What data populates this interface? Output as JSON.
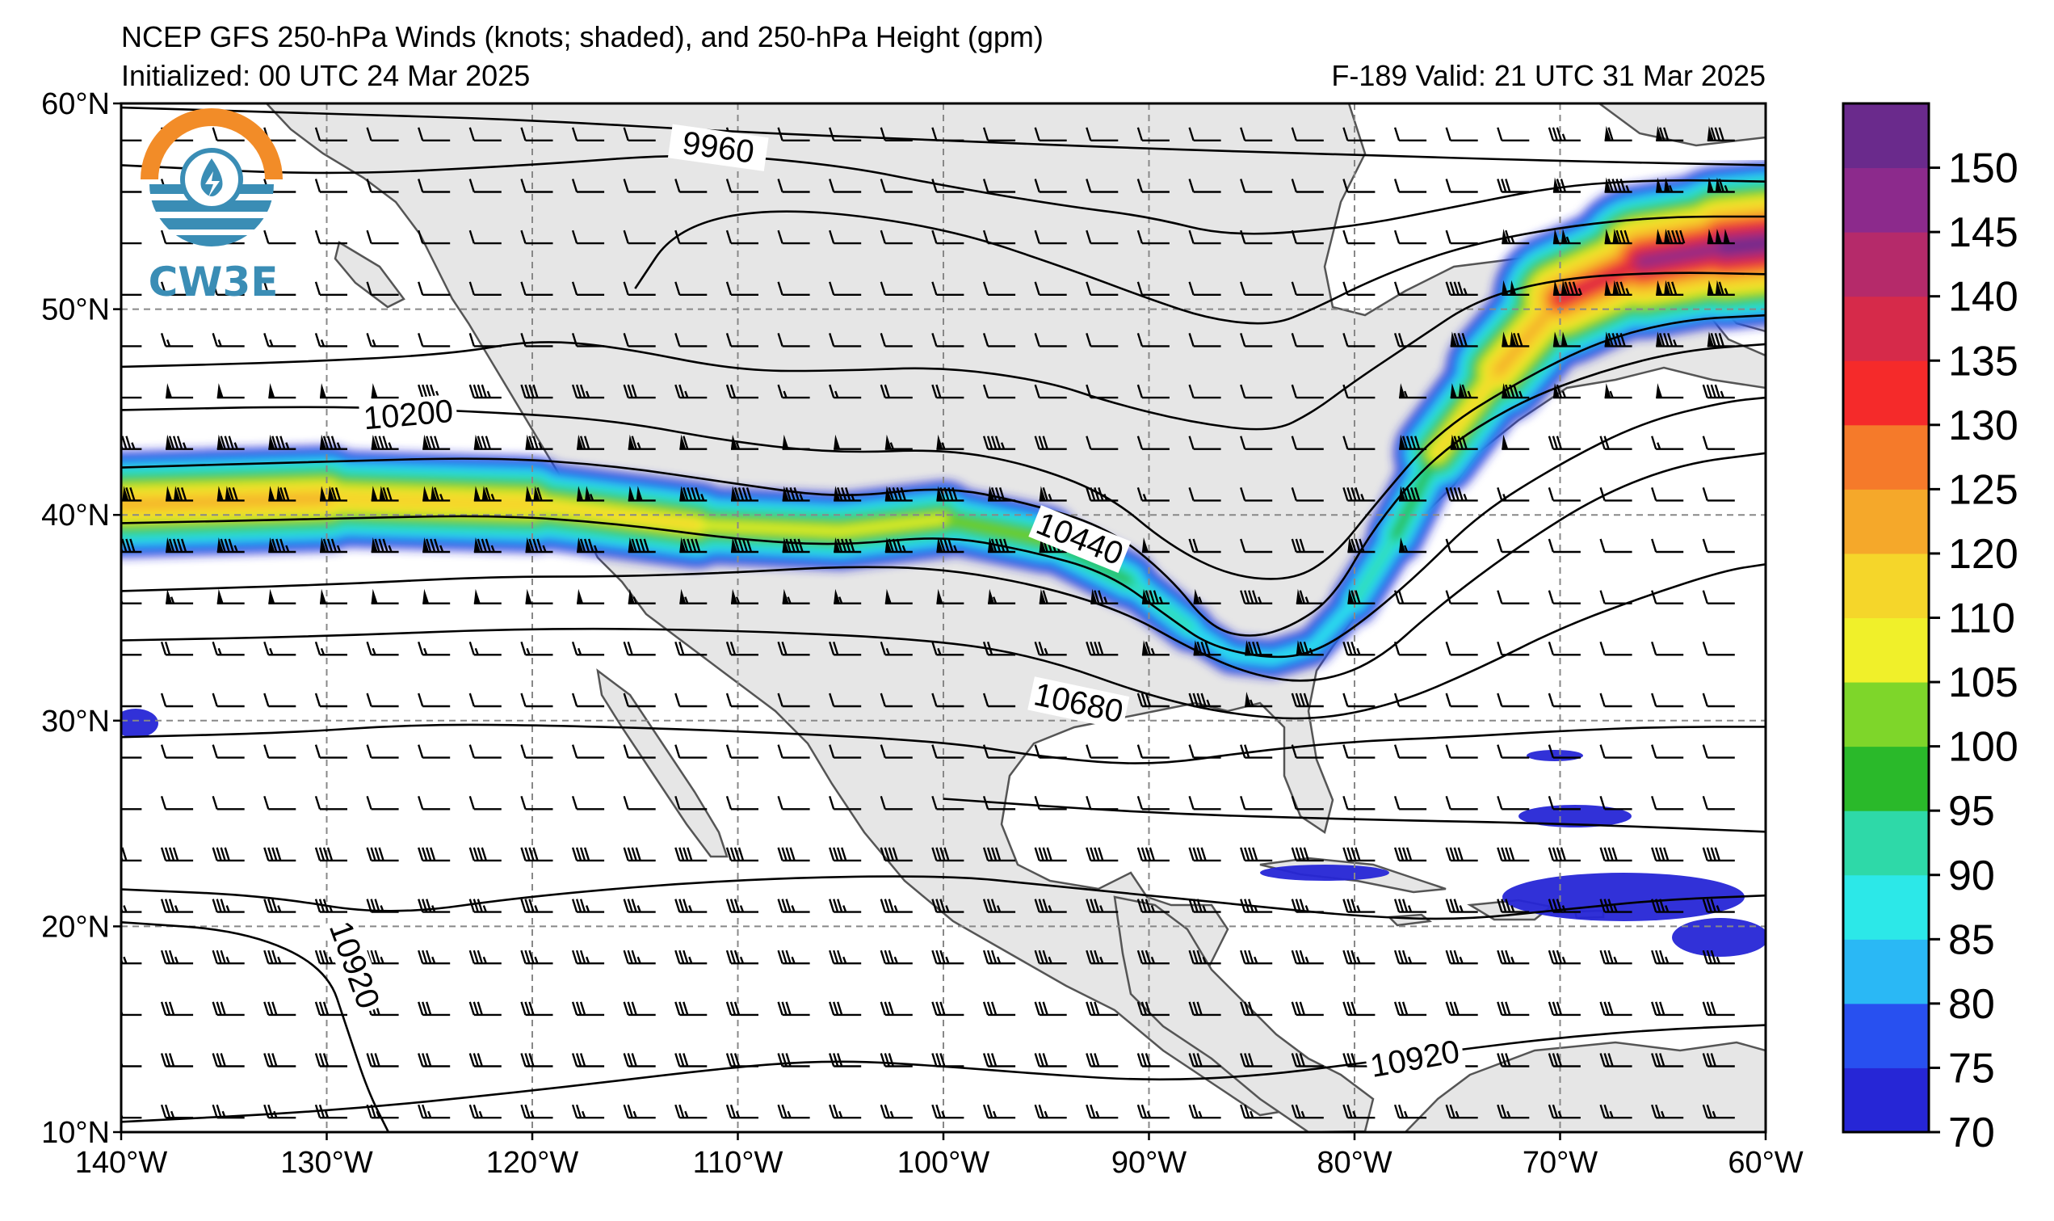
{
  "title": {
    "line1": "NCEP GFS 250-hPa Winds (knots; shaded), and 250-hPa Height (gpm)",
    "line2_left": "Initialized: 00 UTC 24 Mar 2025",
    "line2_right": "F-189  Valid: 21 UTC 31 Mar 2025"
  },
  "logo": {
    "text": "CW3E",
    "icon": "cw3e-logo-icon"
  },
  "map": {
    "lon_range": [
      -140,
      -60
    ],
    "lat_range": [
      10,
      60
    ],
    "grid": true,
    "lon_ticks": [
      "140°W",
      "130°W",
      "120°W",
      "110°W",
      "100°W",
      "90°W",
      "80°W",
      "70°W",
      "60°W"
    ],
    "lat_ticks": [
      "60°N",
      "50°N",
      "40°N",
      "30°N",
      "20°N",
      "10°N"
    ]
  },
  "contours": {
    "units": "gpm",
    "labels": [
      {
        "text": "9960",
        "lon": -111,
        "lat": 57.5,
        "rot": 8
      },
      {
        "text": "10200",
        "lon": -126,
        "lat": 44.5,
        "rot": -5
      },
      {
        "text": "10440",
        "lon": -93.5,
        "lat": 38.5,
        "rot": 22
      },
      {
        "text": "10680",
        "lon": -93.5,
        "lat": 30.5,
        "rot": 12
      },
      {
        "text": "10920",
        "lon": -129,
        "lat": 18,
        "rot": 70
      },
      {
        "text": "10920",
        "lon": -77,
        "lat": 13.2,
        "rot": -10
      }
    ],
    "lines": [
      {
        "lon": [
          -140,
          -130,
          -120,
          -110,
          -100,
          -90,
          -80,
          -70,
          -60
        ],
        "lat": [
          59.8,
          59.5,
          59.2,
          58.6,
          58.2,
          57.8,
          57.5,
          57.2,
          57.0
        ]
      },
      {
        "lon": [
          -140,
          -130,
          -120,
          -112,
          -105,
          -100,
          -94,
          -90,
          -86,
          -80,
          -75,
          -70,
          -65,
          -60
        ],
        "lat": [
          57.0,
          56.5,
          57.0,
          57.6,
          57.0,
          56.0,
          55.0,
          54.5,
          53.5,
          54.0,
          55.0,
          56.0,
          56.3,
          56.2
        ]
      },
      {
        "lon": [
          -115,
          -113,
          -108,
          -100,
          -94,
          -90,
          -87,
          -84,
          -82,
          -79,
          -75,
          -70,
          -65,
          -60
        ],
        "lat": [
          51.0,
          54.0,
          55.0,
          54.0,
          52.0,
          50.5,
          49.5,
          49.2,
          50.0,
          51.5,
          53.0,
          54.0,
          54.5,
          54.5
        ]
      },
      {
        "lon": [
          -140,
          -132,
          -124,
          -120,
          -116,
          -110,
          -105,
          -100,
          -95,
          -92,
          -88,
          -84,
          -82,
          -80,
          -77,
          -74,
          -70,
          -65,
          -60
        ],
        "lat": [
          47.2,
          47.4,
          47.8,
          48.5,
          48.2,
          47.0,
          47.0,
          47.2,
          46.5,
          45.5,
          44.5,
          44.0,
          45.0,
          46.5,
          48.5,
          50.5,
          51.5,
          51.8,
          51.7
        ]
      },
      {
        "lon": [
          -140,
          -130,
          -122,
          -116,
          -110,
          -105,
          -100,
          -96,
          -92,
          -89,
          -86,
          -83,
          -81,
          -79,
          -76,
          -72,
          -68,
          -64,
          -60
        ],
        "lat": [
          45.1,
          45.3,
          45.0,
          44.6,
          43.5,
          43.0,
          43.2,
          42.5,
          41.0,
          38.5,
          37.0,
          36.8,
          38.0,
          40.5,
          44.0,
          46.5,
          48.5,
          49.5,
          49.7
        ]
      },
      {
        "lon": [
          -140,
          -130,
          -122,
          -116,
          -110,
          -105,
          -100,
          -96,
          -92,
          -89,
          -87,
          -85,
          -83,
          -81,
          -79,
          -76,
          -72,
          -68,
          -64,
          -60
        ],
        "lat": [
          42.3,
          42.6,
          42.8,
          42.4,
          41.5,
          40.8,
          41.4,
          40.6,
          39.4,
          37.0,
          34.5,
          34.0,
          34.6,
          36.0,
          39.5,
          43.0,
          45.5,
          47.0,
          48.0,
          48.3
        ]
      },
      {
        "lon": [
          -140,
          -130,
          -122,
          -116,
          -110,
          -105,
          -100,
          -96,
          -92,
          -89,
          -87,
          -84,
          -82,
          -80,
          -77,
          -74,
          -70,
          -66,
          -62,
          -60
        ],
        "lat": [
          39.6,
          39.8,
          40.0,
          39.6,
          38.8,
          38.5,
          39.0,
          38.3,
          37.2,
          35.0,
          33.6,
          33.0,
          33.3,
          34.5,
          37.0,
          40.0,
          42.5,
          44.5,
          45.5,
          45.7
        ]
      },
      {
        "lon": [
          -140,
          -130,
          -122,
          -116,
          -110,
          -105,
          -100,
          -95,
          -91,
          -88,
          -85,
          -82,
          -79,
          -76,
          -72,
          -68,
          -64,
          -60
        ],
        "lat": [
          36.3,
          36.6,
          37.0,
          37.0,
          37.2,
          37.5,
          37.4,
          36.5,
          35.2,
          33.5,
          32.2,
          31.8,
          32.8,
          35.5,
          38.5,
          41.0,
          42.5,
          43.0
        ]
      },
      {
        "lon": [
          -140,
          -130,
          -120,
          -110,
          -100,
          -95,
          -90,
          -86,
          -82,
          -78,
          -74,
          -70,
          -66,
          -62,
          -60
        ],
        "lat": [
          33.9,
          34.1,
          34.5,
          34.4,
          33.9,
          33.0,
          31.2,
          30.3,
          30.0,
          30.8,
          32.5,
          34.5,
          36.0,
          37.3,
          37.6
        ]
      },
      {
        "lon": [
          -140,
          -132,
          -126,
          -120,
          -110,
          -100,
          -95,
          -90,
          -85,
          -80,
          -75,
          -70,
          -65,
          -60
        ],
        "lat": [
          29.2,
          29.4,
          29.8,
          29.8,
          29.5,
          29.0,
          28.2,
          27.8,
          28.5,
          29.0,
          29.2,
          29.5,
          29.7,
          29.7
        ]
      },
      {
        "lon": [
          -140,
          -133,
          -127,
          -120,
          -110,
          -100,
          -95,
          -90,
          -85,
          -80,
          -75,
          -70,
          -65,
          -60
        ],
        "lat": [
          21.8,
          21.5,
          20.5,
          21.5,
          22.3,
          22.5,
          22.0,
          21.5,
          21.0,
          20.5,
          20.3,
          20.8,
          21.3,
          21.5
        ]
      },
      {
        "lon": [
          -140,
          -134,
          -130,
          -129,
          -128,
          -127
        ],
        "lat": [
          20.2,
          19.8,
          18.0,
          15.0,
          12.0,
          10.0
        ]
      },
      {
        "lon": [
          -140,
          -130,
          -120,
          -110,
          -105,
          -100,
          -95,
          -90,
          -85,
          -80,
          -75,
          -70,
          -65,
          -60
        ],
        "lat": [
          10.5,
          11.0,
          12.0,
          13.2,
          13.5,
          13.2,
          12.8,
          12.5,
          12.7,
          13.3,
          14.0,
          14.6,
          15.0,
          15.2
        ]
      },
      {
        "lon": [
          -100,
          -90,
          -80,
          -70,
          -60
        ],
        "lat": [
          26.2,
          25.5,
          25.2,
          25.0,
          24.6
        ]
      }
    ]
  },
  "colorbar": {
    "levels": [
      70,
      75,
      80,
      85,
      90,
      95,
      100,
      105,
      110,
      120,
      125,
      130,
      135,
      140,
      145,
      150
    ],
    "labels": [
      "150",
      "145",
      "140",
      "135",
      "130",
      "125",
      "120",
      "110",
      "105",
      "100",
      "95",
      "90",
      "85",
      "80",
      "75",
      "70"
    ],
    "colors": [
      "#2626d6",
      "#2850f0",
      "#2ab8f5",
      "#2ce8e8",
      "#2ed9a8",
      "#2ab92a",
      "#7ed62a",
      "#f0f02a",
      "#f5d62a",
      "#f5a82a",
      "#f57a2a",
      "#f52a2a",
      "#d62a4a",
      "#b52a6a",
      "#8c2a8c",
      "#6a2a8c"
    ]
  },
  "jet": {
    "speed_scale_kt": [
      70,
      150
    ],
    "axis": {
      "lon": [
        -140,
        -130,
        -120,
        -112,
        -105,
        -100,
        -95,
        -91,
        -88,
        -86,
        -84,
        -82,
        -80,
        -78,
        -76,
        -73,
        -70,
        -66,
        -62,
        -60
      ],
      "lat": [
        40.5,
        40.8,
        40.5,
        39.5,
        39.2,
        39.8,
        38.8,
        36.8,
        34.5,
        33.2,
        33.0,
        33.6,
        35.8,
        39.0,
        43.0,
        47.0,
        50.5,
        52.3,
        53.0,
        53.2
      ]
    },
    "core_kt": [
      125,
      120,
      115,
      110,
      105,
      105,
      100,
      95,
      90,
      85,
      85,
      85,
      90,
      95,
      110,
      120,
      135,
      145,
      150,
      150
    ]
  }
}
